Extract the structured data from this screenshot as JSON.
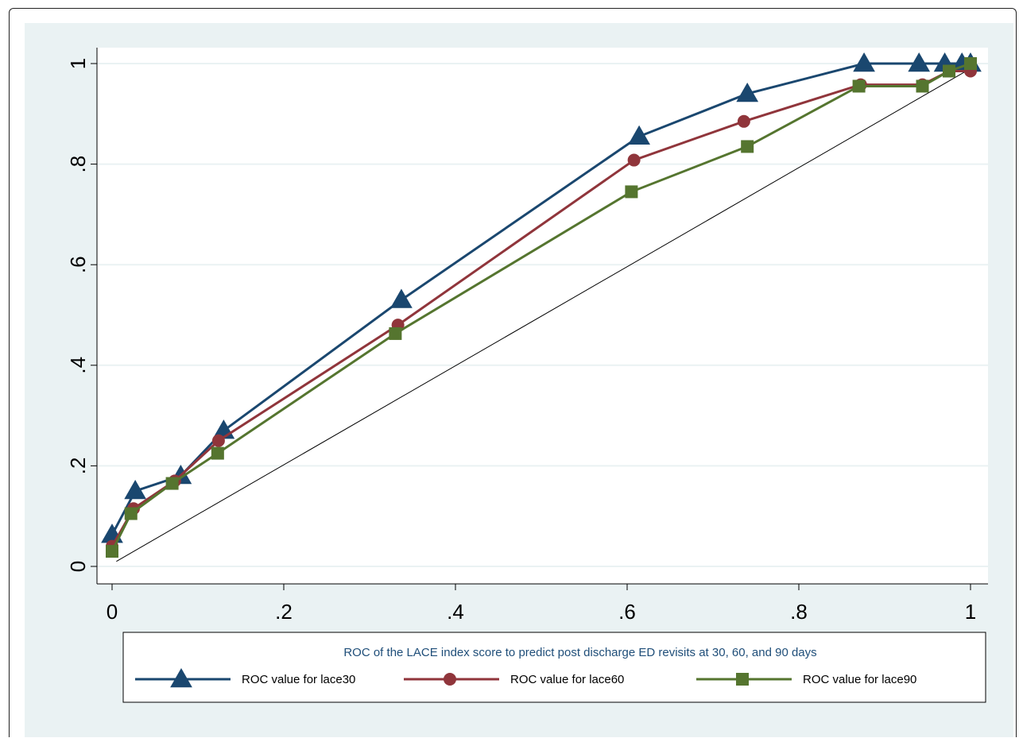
{
  "chart_data": {
    "type": "line",
    "title": "",
    "xlabel": "",
    "ylabel": "",
    "xlim": [
      0,
      1
    ],
    "ylim": [
      0,
      1
    ],
    "x_ticks": [
      "0",
      ".2",
      ".4",
      ".6",
      ".8",
      "1"
    ],
    "y_ticks": [
      "0",
      ".2",
      ".4",
      ".6",
      ".8",
      "1"
    ],
    "grid": true,
    "reference_line": {
      "from": [
        0.005,
        0.01
      ],
      "to": [
        1.0,
        0.99
      ]
    },
    "legend": {
      "position": "bottom",
      "title": "ROC of the LACE index score to predict post discharge ED revisits at 30, 60, and 90 days"
    },
    "colors": {
      "background": "#eaf2f3",
      "plot_background": "#ffffff",
      "grid": "#eaf2f3",
      "lace30": "#1a476f",
      "lace60": "#90353b",
      "lace90": "#55752f"
    },
    "series": [
      {
        "name": "ROC value for lace30",
        "marker": "triangle",
        "color": "#1a476f",
        "x": [
          0,
          0.027,
          0.08,
          0.13,
          0.337,
          0.614,
          0.74,
          0.876,
          0.94,
          0.97,
          0.99,
          1.0
        ],
        "y": [
          0.063,
          0.15,
          0.18,
          0.27,
          0.53,
          0.855,
          0.94,
          1.0,
          1.0,
          1.0,
          1.0,
          1.0
        ]
      },
      {
        "name": "ROC value for lace60",
        "marker": "circle",
        "color": "#90353b",
        "x": [
          0,
          0.025,
          0.073,
          0.124,
          0.333,
          0.608,
          0.736,
          0.872,
          0.944,
          0.975,
          1.0
        ],
        "y": [
          0.04,
          0.115,
          0.17,
          0.25,
          0.48,
          0.808,
          0.885,
          0.958,
          0.958,
          0.985,
          0.985
        ]
      },
      {
        "name": "ROC value for lace90",
        "marker": "square",
        "color": "#55752f",
        "x": [
          0,
          0.022,
          0.07,
          0.123,
          0.33,
          0.605,
          0.74,
          0.87,
          0.944,
          0.975,
          1.0
        ],
        "y": [
          0.03,
          0.105,
          0.165,
          0.225,
          0.463,
          0.745,
          0.835,
          0.955,
          0.955,
          0.985,
          1.0
        ]
      }
    ]
  }
}
